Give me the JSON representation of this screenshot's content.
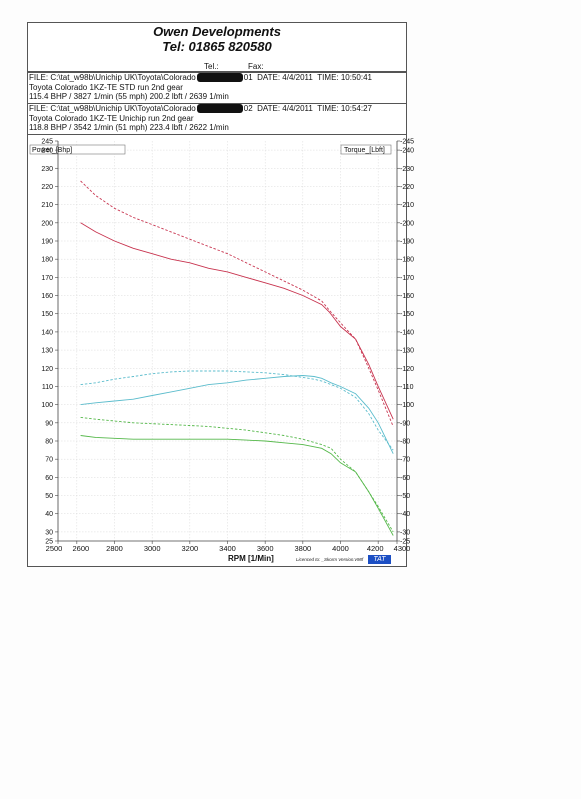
{
  "header": {
    "company": "Owen Developments",
    "phone": "Tel: 01865 820580",
    "tel_label": "Tel.:",
    "fax_label": "Fax:"
  },
  "runs": [
    {
      "file_prefix": "FILE: C:\\tat_w98b\\Unichip UK\\Toyota\\Colorado",
      "file_suffix": "01",
      "date": "DATE: 4/4/2011",
      "time": "TIME: 10:50:41",
      "description": "Toyota Colorado 1KZ-TE STD run 2nd gear",
      "summary": "115.4 BHP / 3827 1/min (55 mph)    200.2 lbft / 2639 1/min"
    },
    {
      "file_prefix": "FILE: C:\\tat_w98b\\Unichip UK\\Toyota\\Colorado",
      "file_suffix": "02",
      "date": "DATE: 4/4/2011",
      "time": "TIME: 10:54:27",
      "description": "Toyota Colorado 1KZ-TE Unichip run 2nd gear",
      "summary": "118.8 BHP / 3542 1/min (51 mph)    223.4 lbft / 2622 1/min"
    }
  ],
  "chart_data": {
    "type": "line",
    "left_axis_label": "Power_[Bhp]",
    "right_axis_label": "Torque_[Lbft]",
    "xlabel": "RPM  [1/Min]",
    "footer_note": "Licenced to: _Skorm  Version:v98f",
    "logo": "TAT",
    "xlim": [
      2500,
      4300
    ],
    "ylim": [
      25,
      245
    ],
    "x_ticks": [
      2500,
      2600,
      2800,
      3000,
      3200,
      3400,
      3600,
      3800,
      4000,
      4200,
      4300
    ],
    "y_ticks_left": [
      25,
      30,
      40,
      50,
      60,
      70,
      80,
      90,
      100,
      110,
      120,
      130,
      140,
      150,
      160,
      170,
      180,
      190,
      200,
      210,
      220,
      230,
      240,
      245
    ],
    "y_ticks_right": [
      25,
      30,
      40,
      50,
      60,
      70,
      80,
      90,
      100,
      110,
      120,
      130,
      140,
      150,
      160,
      170,
      180,
      190,
      200,
      210,
      220,
      230,
      240,
      245
    ],
    "grid": true,
    "series": [
      {
        "color": "#c8344f",
        "dashed": false,
        "x": [
          2620,
          2700,
          2800,
          2900,
          3000,
          3100,
          3200,
          3300,
          3400,
          3500,
          3600,
          3700,
          3800,
          3900,
          3940,
          4000,
          4080,
          4150,
          4200,
          4280
        ],
        "y": [
          200,
          195,
          190,
          186,
          183,
          180,
          178,
          175,
          173,
          170,
          167,
          164,
          160,
          155,
          151,
          143,
          136,
          122,
          110,
          92
        ]
      },
      {
        "color": "#c8344f",
        "dashed": true,
        "x": [
          2620,
          2700,
          2800,
          2900,
          3000,
          3100,
          3200,
          3300,
          3400,
          3500,
          3600,
          3700,
          3800,
          3900,
          3940,
          4000,
          4080,
          4150,
          4200,
          4280
        ],
        "y": [
          223,
          215,
          208,
          203,
          199,
          195,
          191,
          187,
          183,
          178,
          173,
          168,
          163,
          157,
          152,
          145,
          136,
          120,
          108,
          88
        ]
      },
      {
        "color": "#5bbccc",
        "dashed": false,
        "x": [
          2620,
          2700,
          2800,
          2900,
          3000,
          3100,
          3200,
          3300,
          3400,
          3500,
          3600,
          3700,
          3800,
          3860,
          3900,
          3950,
          4000,
          4080,
          4150,
          4200,
          4280
        ],
        "y": [
          100,
          101,
          102,
          103,
          105,
          107,
          109,
          111,
          112,
          113.5,
          114.5,
          115.5,
          116,
          115.5,
          114.5,
          112,
          110,
          106,
          98,
          90,
          73
        ]
      },
      {
        "color": "#5bbccc",
        "dashed": true,
        "x": [
          2620,
          2700,
          2800,
          2900,
          3000,
          3100,
          3200,
          3300,
          3400,
          3500,
          3600,
          3700,
          3800,
          3860,
          3900,
          3950,
          4000,
          4080,
          4150,
          4200,
          4280
        ],
        "y": [
          111,
          112,
          114,
          115.5,
          117,
          118,
          118.5,
          118.5,
          118.5,
          118,
          117.5,
          116.5,
          115,
          114,
          113,
          111,
          109,
          104,
          95,
          86,
          75
        ]
      },
      {
        "color": "#55b84a",
        "dashed": false,
        "x": [
          2620,
          2700,
          2800,
          2900,
          3000,
          3100,
          3200,
          3300,
          3400,
          3500,
          3600,
          3700,
          3800,
          3900,
          3950,
          4000,
          4080,
          4150,
          4200,
          4280
        ],
        "y": [
          83,
          82,
          81.5,
          81,
          81,
          81,
          81,
          81,
          81,
          80.5,
          80,
          79,
          78,
          76,
          73,
          68,
          63,
          52,
          43,
          28
        ]
      },
      {
        "color": "#55b84a",
        "dashed": true,
        "x": [
          2620,
          2700,
          2800,
          2900,
          3000,
          3100,
          3200,
          3300,
          3400,
          3500,
          3600,
          3700,
          3800,
          3900,
          3950,
          4000,
          4080,
          4150,
          4200,
          4280
        ],
        "y": [
          93,
          92,
          91,
          90,
          89.5,
          89,
          88.5,
          88,
          87,
          86,
          84.5,
          83,
          81,
          78,
          76,
          70,
          63,
          52,
          44,
          30
        ]
      }
    ]
  }
}
